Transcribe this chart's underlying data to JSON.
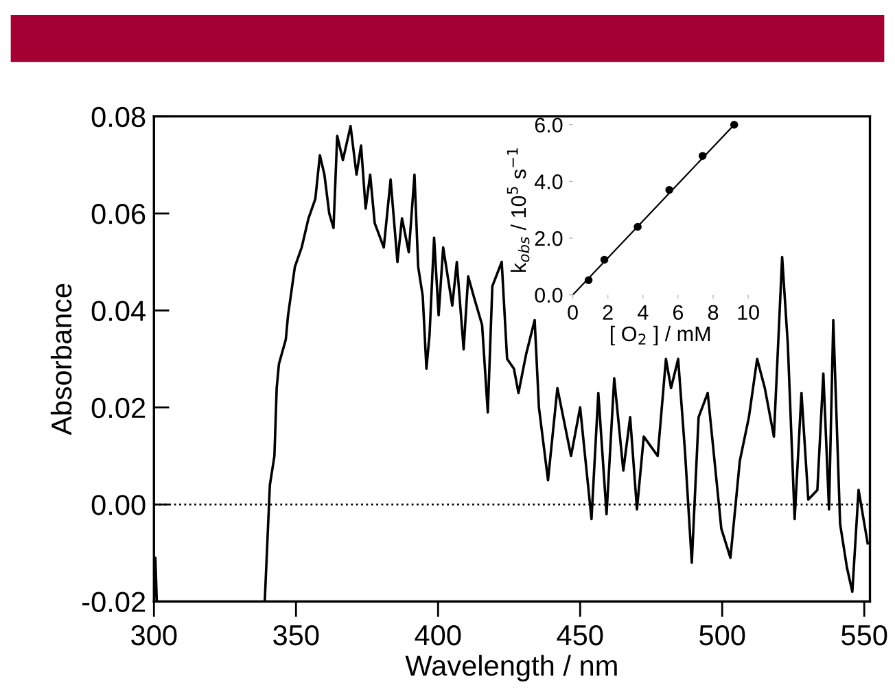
{
  "chart_data": [
    {
      "type": "line",
      "xlabel": "Wavelength / nm",
      "ylabel": "Absorbance",
      "xlim": [
        300,
        552
      ],
      "ylim": [
        -0.02,
        0.08
      ],
      "xticks": [
        300,
        350,
        400,
        450,
        500,
        550
      ],
      "yticks": [
        {
          "value": -0.02,
          "label": "-0.02"
        },
        {
          "value": 0,
          "label": "0.00"
        },
        {
          "value": 0.02,
          "label": "0.02"
        },
        {
          "value": 0.04,
          "label": "0.04"
        },
        {
          "value": 0.06,
          "label": "0.06"
        },
        {
          "value": 0.08,
          "label": "0.08"
        }
      ],
      "grid": false,
      "legend": false,
      "marker": "none",
      "line_style": "solid",
      "ref_lines": [
        {
          "axis": "y",
          "value": 0,
          "line_style": "dotted",
          "color": "#000000"
        }
      ],
      "series": [
        {
          "color": "#000000",
          "x": [
            300,
            300.5,
            301,
            302,
            339,
            340.8,
            342.4,
            343.2,
            344,
            346.4,
            347.2,
            349.6,
            352,
            354.4,
            356.8,
            358.4,
            360,
            361.7,
            363.2,
            364.5,
            366.5,
            369.2,
            371.3,
            372.9,
            374.5,
            376.1,
            377.7,
            380.9,
            383.3,
            385.7,
            387.3,
            389.7,
            391.7,
            393,
            394.6,
            395.9,
            397,
            398.6,
            400.2,
            401.8,
            405,
            406.6,
            409,
            410.6,
            413,
            415.5,
            417.5,
            419.1,
            422.4,
            424.3,
            426.7,
            428.3,
            431,
            434,
            435.5,
            438.7,
            442,
            446.8,
            450,
            454,
            456.4,
            459.3,
            462,
            465.2,
            467.6,
            470,
            472.4,
            477.3,
            480.2,
            482,
            484.5,
            486.9,
            489.3,
            491.7,
            494.9,
            499.7,
            502.9,
            506.2,
            509.4,
            512.3,
            515,
            518.2,
            521.1,
            523.1,
            525.5,
            527.9,
            530.3,
            533.5,
            535.6,
            537.6,
            539.1,
            541.5,
            543.9,
            545.8,
            548,
            551.2
          ],
          "values": [
            -0.02,
            -0.011,
            -0.02,
            null,
            -0.02,
            0.004,
            0.01,
            0.024,
            0.029,
            0.034,
            0.039,
            0.049,
            0.053,
            0.059,
            0.063,
            0.072,
            0.068,
            0.06,
            0.057,
            0.076,
            0.071,
            0.078,
            0.068,
            0.074,
            0.061,
            0.068,
            0.058,
            0.053,
            0.067,
            0.05,
            0.059,
            0.052,
            0.068,
            0.049,
            0.043,
            0.028,
            0.035,
            0.055,
            0.039,
            0.053,
            0.041,
            0.05,
            0.032,
            0.047,
            0.042,
            0.037,
            0.019,
            0.045,
            0.05,
            0.03,
            0.028,
            0.023,
            0.031,
            0.038,
            0.02,
            0.005,
            0.024,
            0.01,
            0.02,
            -0.003,
            0.023,
            -0.002,
            0.026,
            0.007,
            0.018,
            -0.001,
            0.014,
            0.01,
            0.03,
            0.024,
            0.03,
            0.011,
            -0.012,
            0.018,
            0.023,
            -0.005,
            -0.011,
            0.009,
            0.018,
            0.03,
            0.024,
            0.014,
            0.051,
            0.033,
            -0.003,
            0.023,
            0.001,
            0.003,
            0.027,
            -0.001,
            0.038,
            -0.004,
            -0.013,
            -0.018,
            0.003,
            -0.008
          ]
        }
      ]
    },
    {
      "type": "scatter",
      "xlabel": "[ O$_{2}$ ] / mM",
      "ylabel": "k$_{obs}$ / 10$^{5}$ s$^{−1}$",
      "xlim": [
        0,
        10
      ],
      "ylim": [
        0,
        6
      ],
      "xticks": [
        0,
        2,
        4,
        6,
        8,
        10
      ],
      "yticks": [
        {
          "value": 0,
          "label": "0.0"
        },
        {
          "value": 2,
          "label": "2.0"
        },
        {
          "value": 4,
          "label": "4.0"
        },
        {
          "value": 6,
          "label": "6.0"
        }
      ],
      "grid": false,
      "legend": false,
      "series": [
        {
          "color": "#000000",
          "marker": "circle",
          "x": [
            0.9,
            1.8,
            3.7,
            5.5,
            7.4,
            9.2
          ],
          "values": [
            0.52,
            1.24,
            2.4,
            3.7,
            4.9,
            6.0
          ]
        },
        {
          "type": "line",
          "marker": "none",
          "color": "#000000",
          "x": [
            0,
            9.2
          ],
          "values": [
            0.0,
            6.0
          ]
        }
      ]
    }
  ]
}
